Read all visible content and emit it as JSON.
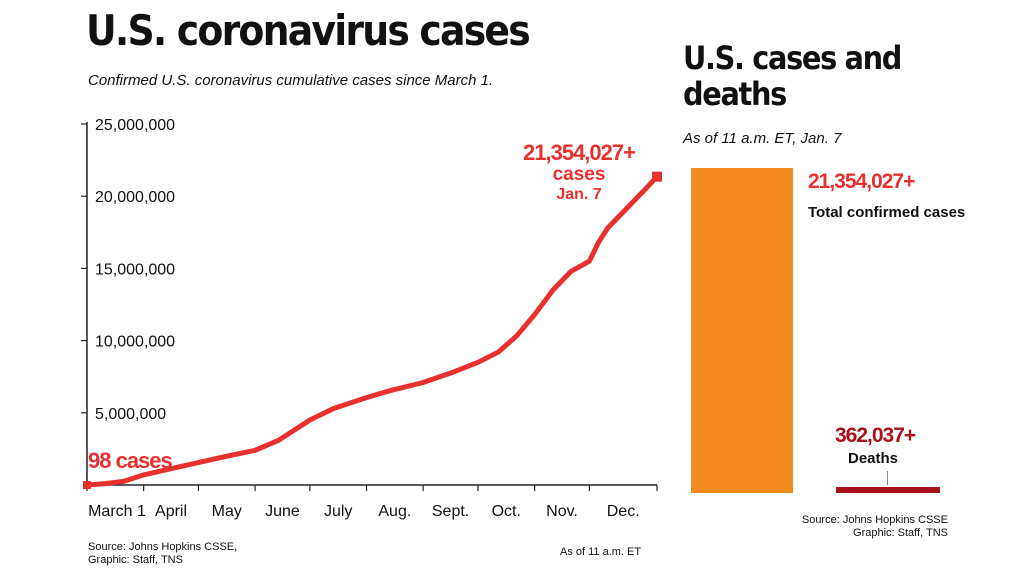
{
  "left": {
    "title": "U.S. coronavirus cases",
    "subtitle": "Confirmed U.S. coronavirus cumulative cases since March 1.",
    "source": "Source: Johns Hopkins CSSE,\nGraphic: Staff, TNS",
    "note": "As of 11 a.m. ET",
    "start_label": "98 cases",
    "end_value": "21,354,027+",
    "end_unit": "cases",
    "end_date": "Jan. 7"
  },
  "right": {
    "title": "U.S. cases and deaths",
    "subtitle": "As of 11 a.m. ET, Jan. 7",
    "cases_value": "21,354,027+",
    "cases_label": "Total confirmed cases",
    "deaths_value": "362,037+",
    "deaths_label": "Deaths",
    "source": "Source: Johns Hopkins CSSE\nGraphic: Staff, TNS"
  },
  "colors": {
    "line": "#e8302e",
    "cases_bar": "#f28a1e",
    "deaths_bar": "#a8101a"
  },
  "chart_data": [
    {
      "type": "line",
      "title": "U.S. coronavirus cases",
      "subtitle": "Confirmed U.S. coronavirus cumulative cases since March 1.",
      "ylim": [
        0,
        25000000
      ],
      "yticks": [
        5000000,
        10000000,
        15000000,
        20000000,
        25000000
      ],
      "ytick_labels": [
        "5,000,000",
        "10,000,000",
        "15,000,000",
        "20,000,000",
        "25,000,000"
      ],
      "xtick_labels": [
        "March 1",
        "April",
        "May",
        "June",
        "July",
        "Aug.",
        "Sept.",
        "Oct.",
        "Nov.",
        "Dec."
      ],
      "xlim_days": [
        0,
        312
      ],
      "xtick_days": [
        0,
        31,
        61,
        92,
        122,
        153,
        184,
        214,
        245,
        275
      ],
      "series": [
        {
          "x_days": [
            0,
            10,
            20,
            31,
            45,
            61,
            75,
            92,
            105,
            122,
            135,
            153,
            165,
            184,
            200,
            214,
            225,
            235,
            245,
            255,
            265,
            275,
            280,
            285,
            295,
            305,
            312
          ],
          "values": [
            98,
            100000,
            250000,
            700000,
            1100000,
            1550000,
            1950000,
            2400000,
            3100000,
            4500000,
            5300000,
            6050000,
            6500000,
            7100000,
            7800000,
            8500000,
            9200000,
            10300000,
            11800000,
            13500000,
            14800000,
            15500000,
            16800000,
            17800000,
            19100000,
            20400000,
            21354027
          ]
        }
      ],
      "annotations": [
        "98 cases",
        "21,354,027+ cases Jan. 7"
      ]
    },
    {
      "type": "bar",
      "title": "U.S. cases and deaths",
      "categories": [
        "Total confirmed cases",
        "Deaths"
      ],
      "values": [
        21354027,
        362037
      ]
    }
  ]
}
